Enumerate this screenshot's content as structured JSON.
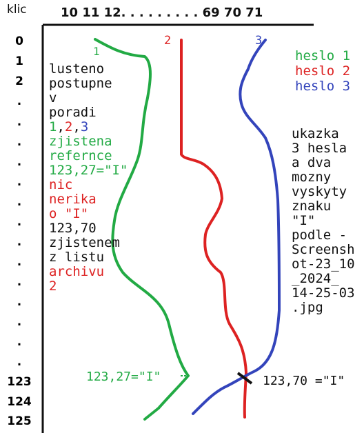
{
  "header": {
    "key_label": "klic",
    "columns_label": "10 11 12. . . . . . . . . 69 70 71"
  },
  "row_labels": [
    "0",
    "1",
    "2",
    ".",
    ".",
    ".",
    ".",
    ".",
    ".",
    ".",
    ".",
    ".",
    ".",
    ".",
    ".",
    ".",
    ".",
    "123",
    "124",
    "125"
  ],
  "line_numbers": {
    "one": "1",
    "two": "2",
    "three": "3"
  },
  "legend": {
    "item1": "heslo 1",
    "item2": "heslo 2",
    "item3": "heslo 3"
  },
  "left_note": [
    {
      "text": "lusteno",
      "color": "black"
    },
    {
      "text": "postupne",
      "color": "black"
    },
    {
      "text": "v",
      "color": "black"
    },
    {
      "text": "poradi",
      "color": "black"
    },
    {
      "text": "1,2,3",
      "color": "mixed"
    },
    {
      "text": "zjistena",
      "color": "green"
    },
    {
      "text": "refernce",
      "color": "green"
    },
    {
      "text": "123,27=\"I\"",
      "color": "green"
    },
    {
      "text": "nic",
      "color": "red"
    },
    {
      "text": "nerika",
      "color": "red"
    },
    {
      "text": "o \"I\"",
      "color": "red"
    },
    {
      "text": "123,70",
      "color": "black"
    },
    {
      "text": "zjistenem",
      "color": "black"
    },
    {
      "text": "z listu",
      "color": "black"
    },
    {
      "text": "archivu",
      "color": "red"
    },
    {
      "text": "2",
      "color": "red"
    }
  ],
  "right_note": [
    "ukazka",
    "3 hesla",
    "a dva",
    "mozny",
    "vyskyty",
    "znaku",
    "\"I\"",
    "podle -",
    "Screensh",
    "ot-23_10",
    "_2024_",
    "14-25-03",
    ".jpg"
  ],
  "annotations": {
    "green_mark": "123,27=\"I\"",
    "black_mark": "123,70 =\"I\""
  },
  "colors": {
    "green": "#22aa44",
    "red": "#dd2222",
    "blue": "#3344bb",
    "black": "#111111"
  }
}
